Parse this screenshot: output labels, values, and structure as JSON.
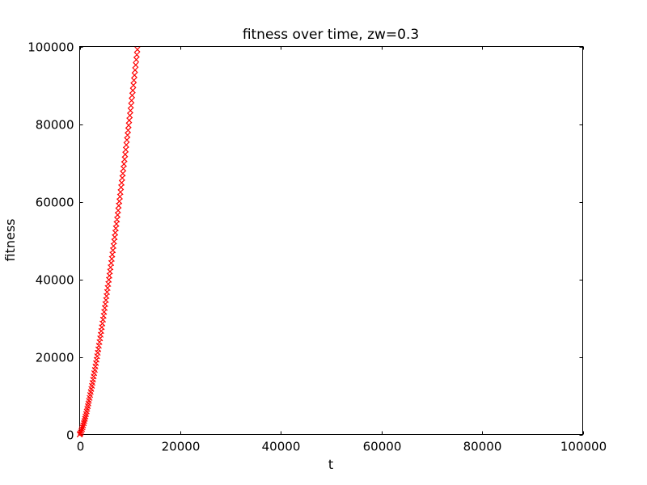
{
  "chart_data": {
    "type": "scatter",
    "title": "fitness over time, zw=0.3",
    "xlabel": "t",
    "ylabel": "fitness",
    "xlim": [
      0,
      100000
    ],
    "ylim": [
      0,
      100000
    ],
    "xticks": [
      0,
      20000,
      40000,
      60000,
      80000,
      100000
    ],
    "yticks": [
      0,
      20000,
      40000,
      60000,
      80000,
      100000
    ],
    "grid": false,
    "legend": "none",
    "frame_color": "#000000",
    "background": "#ffffff",
    "series": [
      {
        "name": "fitness",
        "marker": "x",
        "color": "#ff0000",
        "points": [
          [
            0,
            0
          ],
          [
            116,
            215
          ],
          [
            232,
            542
          ],
          [
            348,
            932
          ],
          [
            464,
            1368
          ],
          [
            580,
            1843
          ],
          [
            696,
            2351
          ],
          [
            812,
            2888
          ],
          [
            928,
            3451
          ],
          [
            1044,
            4040
          ],
          [
            1160,
            4650
          ],
          [
            1276,
            5280
          ],
          [
            1392,
            5932
          ],
          [
            1508,
            6600
          ],
          [
            1624,
            7286
          ],
          [
            1740,
            7991
          ],
          [
            1856,
            8708
          ],
          [
            1972,
            9443
          ],
          [
            2088,
            10193
          ],
          [
            2204,
            10954
          ],
          [
            2320,
            11733
          ],
          [
            2436,
            12522
          ],
          [
            2552,
            13321
          ],
          [
            2668,
            14143
          ],
          [
            2784,
            14964
          ],
          [
            2900,
            15805
          ],
          [
            3016,
            16652
          ],
          [
            3132,
            17514
          ],
          [
            3248,
            18380
          ],
          [
            3364,
            19264
          ],
          [
            3480,
            20161
          ],
          [
            3596,
            21059
          ],
          [
            3712,
            21964
          ],
          [
            3828,
            22891
          ],
          [
            3944,
            23822
          ],
          [
            4060,
            24764
          ],
          [
            4176,
            25714
          ],
          [
            4292,
            26666
          ],
          [
            4408,
            27634
          ],
          [
            4524,
            28612
          ],
          [
            4640,
            29595
          ],
          [
            4756,
            30588
          ],
          [
            4872,
            31588
          ],
          [
            4988,
            32594
          ],
          [
            5104,
            33605
          ],
          [
            5220,
            34643
          ],
          [
            5336,
            35677
          ],
          [
            5452,
            36711
          ],
          [
            5568,
            37745
          ],
          [
            5684,
            38801
          ],
          [
            5800,
            39870
          ],
          [
            5916,
            40936
          ],
          [
            6032,
            42005
          ],
          [
            6148,
            43090
          ],
          [
            6264,
            44183
          ],
          [
            6380,
            45275
          ],
          [
            6496,
            46369
          ],
          [
            6612,
            47487
          ],
          [
            6728,
            48596
          ],
          [
            6844,
            49727
          ],
          [
            6960,
            50858
          ],
          [
            7076,
            51996
          ],
          [
            7192,
            53127
          ],
          [
            7308,
            54281
          ],
          [
            7424,
            55406
          ],
          [
            7540,
            56592
          ],
          [
            7656,
            57747
          ],
          [
            7772,
            58970
          ],
          [
            7888,
            60095
          ],
          [
            8004,
            61309
          ],
          [
            8120,
            62472
          ],
          [
            8236,
            63718
          ],
          [
            8352,
            64872
          ],
          [
            8468,
            66125
          ],
          [
            8584,
            67272
          ],
          [
            8700,
            68520
          ],
          [
            8816,
            69713
          ],
          [
            8932,
            70937
          ],
          [
            9048,
            72178
          ],
          [
            9164,
            73422
          ],
          [
            9280,
            74655
          ],
          [
            9396,
            75925
          ],
          [
            9512,
            77168
          ],
          [
            9628,
            78421
          ],
          [
            9744,
            79687
          ],
          [
            9860,
            80962
          ],
          [
            9976,
            82225
          ],
          [
            10092,
            83510
          ],
          [
            10208,
            84766
          ],
          [
            10324,
            86090
          ],
          [
            10440,
            87395
          ],
          [
            10556,
            88670
          ],
          [
            10672,
            90001
          ],
          [
            10788,
            91291
          ],
          [
            10904,
            92609
          ],
          [
            11020,
            93923
          ],
          [
            11136,
            95224
          ],
          [
            11252,
            96600
          ],
          [
            11368,
            97885
          ],
          [
            11484,
            99233
          ]
        ]
      }
    ]
  }
}
